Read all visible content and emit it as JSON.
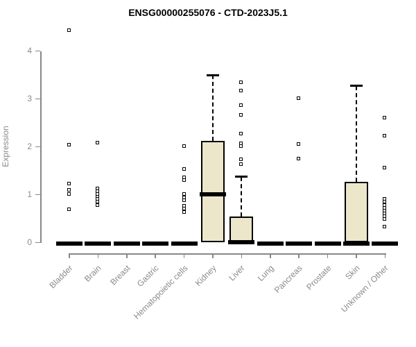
{
  "chart_data": {
    "type": "boxplot",
    "title": "ENSG00000255076 - CTD-2023J5.1",
    "xlabel": "",
    "ylabel": "Expression",
    "ylim": [
      0,
      4
    ],
    "yticks": [
      0,
      1,
      2,
      3,
      4
    ],
    "grid": false,
    "legend": "none",
    "box_fill_color": "#ECE7CB",
    "box_border_color": "#000000",
    "axis_color": "#878787",
    "tick_label_color": "#8a8a8a",
    "categories": [
      "Bladder",
      "Brain",
      "Breast",
      "Gastric",
      "Hematopoietic cells",
      "Kidney",
      "Liver",
      "Lung",
      "Pancreas",
      "Prostate",
      "Skin",
      "Unknown / Other"
    ],
    "series": [
      {
        "category": "Bladder",
        "whisker_low": 0,
        "q1": 0,
        "median": 0,
        "q3": 0,
        "whisker_high": 0,
        "outliers": [
          4.43,
          2.03,
          1.22,
          1.09,
          1.01,
          0.68
        ]
      },
      {
        "category": "Brain",
        "whisker_low": 0,
        "q1": 0,
        "median": 0,
        "q3": 0,
        "whisker_high": 0,
        "outliers": [
          2.08,
          1.12,
          1.06,
          1.0,
          0.95,
          0.9,
          0.84,
          0.78
        ]
      },
      {
        "category": "Breast",
        "whisker_low": 0,
        "q1": 0,
        "median": 0,
        "q3": 0,
        "whisker_high": 0,
        "outliers": []
      },
      {
        "category": "Gastric",
        "whisker_low": 0,
        "q1": 0,
        "median": 0,
        "q3": 0,
        "whisker_high": 0,
        "outliers": []
      },
      {
        "category": "Hematopoietic cells",
        "whisker_low": 0,
        "q1": 0,
        "median": 0,
        "q3": 0,
        "whisker_high": 0,
        "outliers": [
          2.0,
          1.53,
          1.36,
          1.29,
          1.0,
          0.94,
          0.87,
          0.76,
          0.7,
          0.63
        ]
      },
      {
        "category": "Kidney",
        "whisker_low": 0,
        "q1": 0,
        "median": 1.03,
        "q3": 2.13,
        "whisker_high": 3.5,
        "outliers": []
      },
      {
        "category": "Liver",
        "whisker_low": 0,
        "q1": 0,
        "median": 0.03,
        "q3": 0.55,
        "whisker_high": 1.37,
        "outliers": [
          3.34,
          3.16,
          2.86,
          2.66,
          2.27,
          2.07,
          2.0,
          1.73,
          1.63
        ]
      },
      {
        "category": "Lung",
        "whisker_low": 0,
        "q1": 0,
        "median": 0,
        "q3": 0,
        "whisker_high": 0,
        "outliers": []
      },
      {
        "category": "Pancreas",
        "whisker_low": 0,
        "q1": 0,
        "median": 0,
        "q3": 0,
        "whisker_high": 0,
        "outliers": [
          3.01,
          2.05,
          1.75
        ]
      },
      {
        "category": "Prostate",
        "whisker_low": 0,
        "q1": 0,
        "median": 0,
        "q3": 0,
        "whisker_high": 0,
        "outliers": []
      },
      {
        "category": "Skin",
        "whisker_low": 0,
        "q1": 0,
        "median": 0,
        "q3": 1.27,
        "whisker_high": 3.27,
        "outliers": []
      },
      {
        "category": "Unknown / Other",
        "whisker_low": 0,
        "q1": 0,
        "median": 0,
        "q3": 0,
        "whisker_high": 0,
        "outliers": [
          2.6,
          2.23,
          1.56,
          0.9,
          0.84,
          0.78,
          0.72,
          0.66,
          0.6,
          0.54,
          0.48,
          0.32
        ]
      }
    ]
  }
}
